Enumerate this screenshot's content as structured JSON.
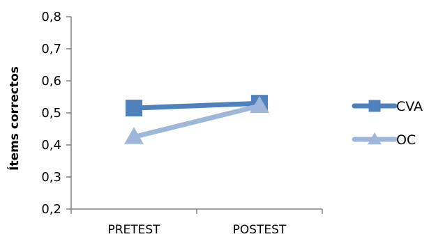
{
  "chart_data": {
    "type": "line",
    "title": "",
    "xlabel": "",
    "ylabel": "Ítems correctos",
    "categories": [
      "PRETEST",
      "POSTEST"
    ],
    "ylim": [
      0.2,
      0.8
    ],
    "ytick_values": [
      0.2,
      0.3,
      0.4,
      0.5,
      0.6,
      0.7,
      0.8
    ],
    "ytick_labels": [
      "0,2",
      "0,3",
      "0,4",
      "0,5",
      "0,6",
      "0,7",
      "0,8"
    ],
    "grid": false,
    "legend_position": "right",
    "series": [
      {
        "name": "CVA",
        "values": [
          0.515,
          0.53
        ],
        "color": "#4F81BD",
        "marker": "square"
      },
      {
        "name": "OC",
        "values": [
          0.425,
          0.522
        ],
        "color": "#9FB6DB",
        "marker": "triangle"
      }
    ]
  }
}
